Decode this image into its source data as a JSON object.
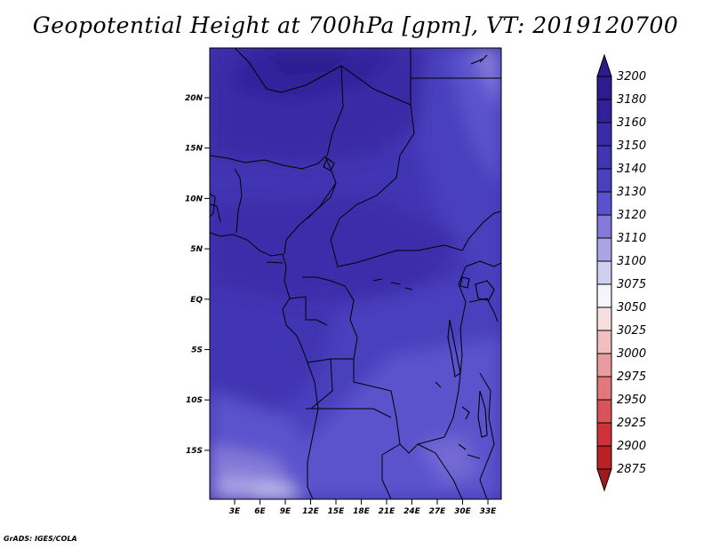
{
  "title": "Geopotential Height at 700hPa [gpm], VT: 2019120700",
  "credit": "GrADS: IGES/COLA",
  "map": {
    "lat_ticks": [
      "20N",
      "15N",
      "10N",
      "5N",
      "EQ",
      "5S",
      "10S",
      "15S"
    ],
    "lon_ticks": [
      "3E",
      "6E",
      "9E",
      "12E",
      "15E",
      "18E",
      "21E",
      "24E",
      "27E",
      "30E",
      "33E"
    ]
  },
  "colorbar": {
    "levels": [
      {
        "label": "3200",
        "color": "#2d1b8f"
      },
      {
        "label": "3180",
        "color": "#32209b"
      },
      {
        "label": "3160",
        "color": "#3a2ba6"
      },
      {
        "label": "3150",
        "color": "#4235b3"
      },
      {
        "label": "3140",
        "color": "#4a40be"
      },
      {
        "label": "3130",
        "color": "#5a52cc"
      },
      {
        "label": "3120",
        "color": "#8479d8"
      },
      {
        "label": "3110",
        "color": "#aaa4e4"
      },
      {
        "label": "3100",
        "color": "#cfd0f1"
      },
      {
        "label": "3075",
        "color": "#f4f4fb"
      },
      {
        "label": "3050",
        "color": "#f7dfe0"
      },
      {
        "label": "3025",
        "color": "#f1bfc2"
      },
      {
        "label": "3000",
        "color": "#e99ca0"
      },
      {
        "label": "2975",
        "color": "#e1787c"
      },
      {
        "label": "2950",
        "color": "#d85458"
      },
      {
        "label": "2925",
        "color": "#cf3338"
      },
      {
        "label": "2900",
        "color": "#bb2026"
      },
      {
        "label": "2875",
        "color": "#a0191c"
      }
    ]
  }
}
